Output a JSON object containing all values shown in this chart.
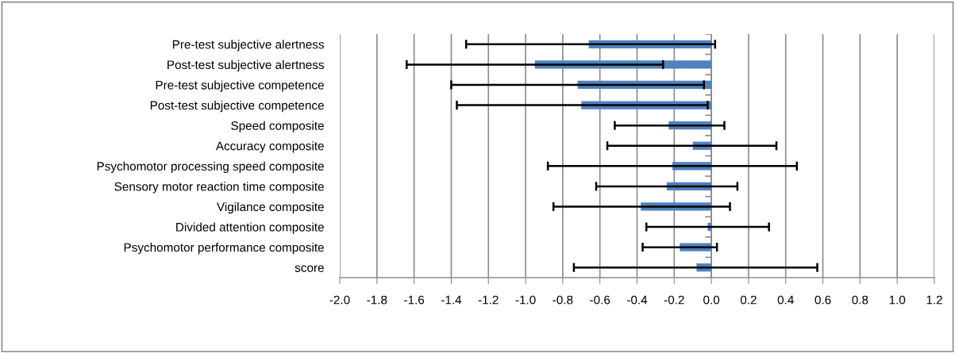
{
  "chart_data": {
    "type": "bar",
    "orientation": "horizontal",
    "categories": [
      "Pre-test subjective alertness",
      "Post-test subjective alertness",
      "Pre-test subjective competence",
      "Post-test subjective competence",
      "Speed composite",
      "Accuracy composite",
      "Psychomotor processing speed composite",
      "Sensory motor reaction time composite",
      "Vigilance composite",
      "Divided attention composite",
      "Psychomotor performance composite",
      "score"
    ],
    "values": [
      -0.66,
      -0.95,
      -0.72,
      -0.7,
      -0.23,
      -0.1,
      -0.21,
      -0.24,
      -0.38,
      -0.02,
      -0.17,
      -0.08
    ],
    "errors": [
      [
        -1.32,
        0.02
      ],
      [
        -1.64,
        -0.26
      ],
      [
        -1.4,
        -0.04
      ],
      [
        -1.37,
        -0.02
      ],
      [
        -0.52,
        0.07
      ],
      [
        -0.56,
        0.35
      ],
      [
        -0.88,
        0.46
      ],
      [
        -0.62,
        0.14
      ],
      [
        -0.85,
        0.1
      ],
      [
        -0.35,
        0.31
      ],
      [
        -0.37,
        0.03
      ],
      [
        -0.74,
        0.57
      ]
    ],
    "color": "#4f81bd",
    "xlim": [
      -2.0,
      1.2
    ],
    "xticks": [
      {
        "value": -2.0,
        "label": "-2.0"
      },
      {
        "value": -1.8,
        "label": "-1.8"
      },
      {
        "value": -1.6,
        "label": "-1.6"
      },
      {
        "value": -1.4,
        "label": "-1.4"
      },
      {
        "value": -1.2,
        "label": "-1.2"
      },
      {
        "value": -1.0,
        "label": "-1.0"
      },
      {
        "value": -0.8,
        "label": "-0.8"
      },
      {
        "value": -0.6,
        "label": "-0.6"
      },
      {
        "value": -0.4,
        "label": "-0.4"
      },
      {
        "value": -0.2,
        "label": "-0.2"
      },
      {
        "value": 0.0,
        "label": "0.0"
      },
      {
        "value": 0.2,
        "label": "0.2"
      },
      {
        "value": 0.4,
        "label": "0.4"
      },
      {
        "value": 0.6,
        "label": "0.6"
      },
      {
        "value": 0.8,
        "label": "0.8"
      },
      {
        "value": 1.0,
        "label": "1.0"
      },
      {
        "value": 1.2,
        "label": "1.2"
      }
    ],
    "grid": "x",
    "legend": false
  }
}
